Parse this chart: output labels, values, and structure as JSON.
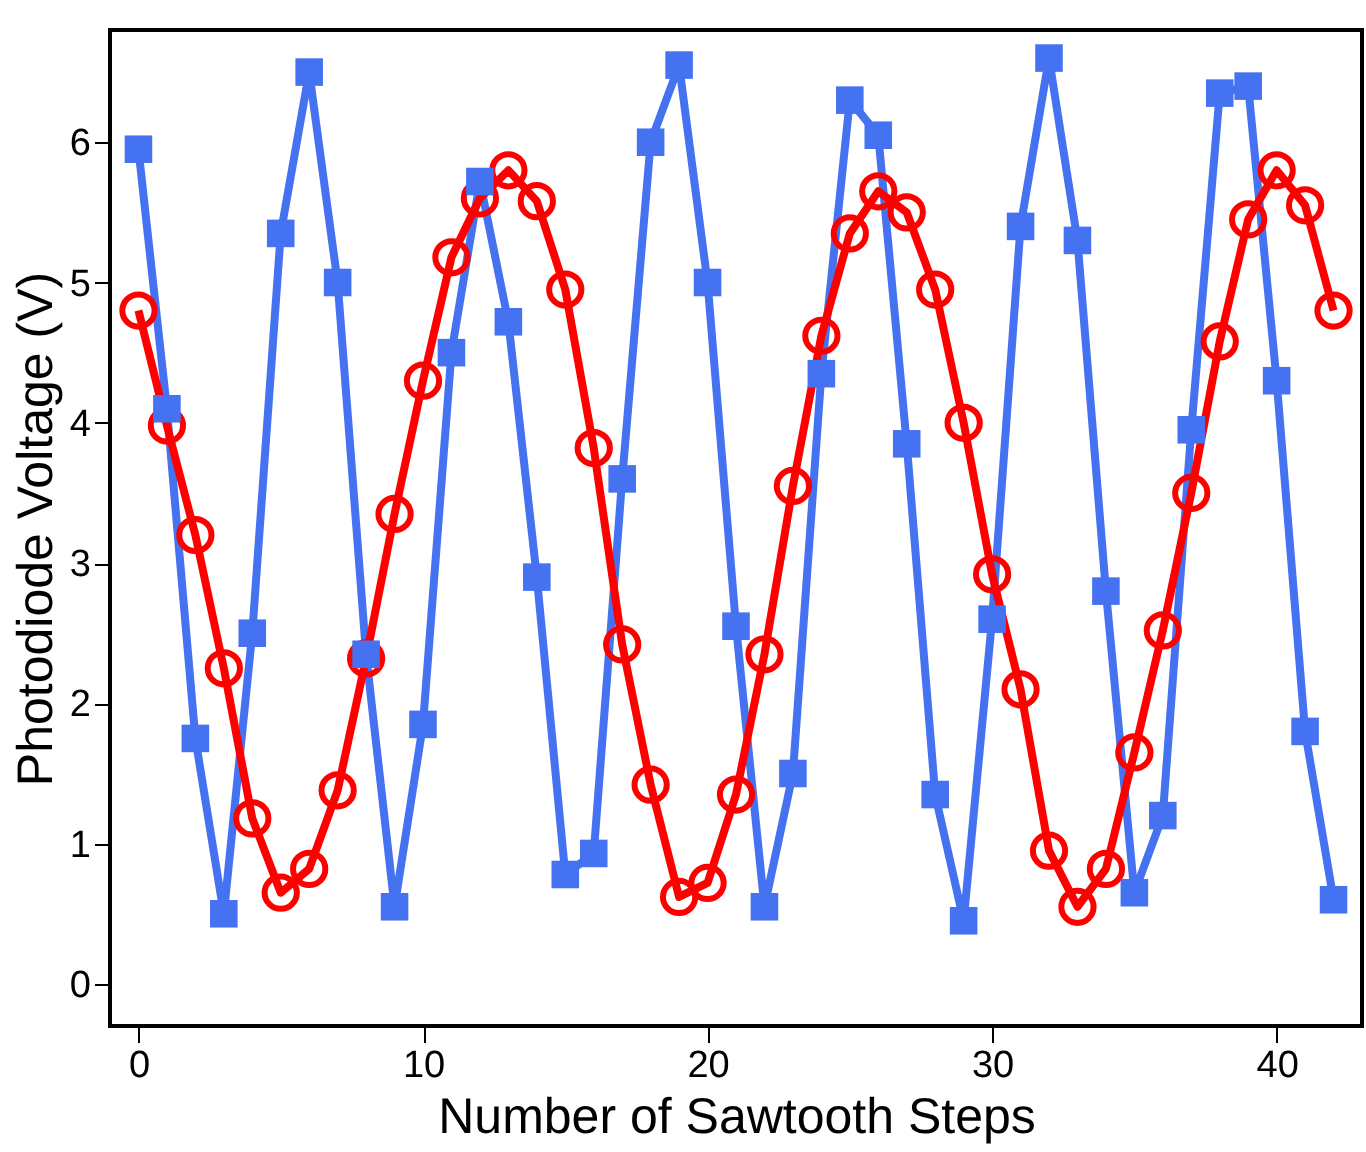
{
  "chart_data": {
    "type": "line",
    "xlabel": "Number of Sawtooth Steps",
    "ylabel": "Photodiode Voltage (V)",
    "x": [
      0,
      1,
      2,
      3,
      4,
      5,
      6,
      7,
      8,
      9,
      10,
      11,
      12,
      13,
      14,
      15,
      16,
      17,
      18,
      19,
      20,
      21,
      22,
      23,
      24,
      25,
      26,
      27,
      28,
      29,
      30,
      31,
      32,
      33,
      34,
      35,
      36,
      37,
      38,
      39,
      40,
      41,
      42
    ],
    "series": [
      {
        "color": "#4472f0",
        "marker": "square",
        "values": [
          5.95,
          4.1,
          1.75,
          0.5,
          2.5,
          5.35,
          6.5,
          5.0,
          2.35,
          0.55,
          1.85,
          4.5,
          5.72,
          4.72,
          2.9,
          0.78,
          0.93,
          3.6,
          6.0,
          6.55,
          5.0,
          2.55,
          0.55,
          1.5,
          4.35,
          6.3,
          6.05,
          3.85,
          1.35,
          0.45,
          2.6,
          5.4,
          6.6,
          5.3,
          2.8,
          0.65,
          1.2,
          3.95,
          6.35,
          6.4,
          4.3,
          1.8,
          0.6
        ]
      },
      {
        "color": "#ff0000",
        "marker": "circle",
        "values": [
          4.8,
          3.98,
          3.2,
          2.25,
          1.18,
          0.65,
          0.82,
          1.38,
          2.32,
          3.35,
          4.3,
          5.18,
          5.6,
          5.8,
          5.58,
          4.95,
          3.82,
          2.42,
          1.42,
          0.62,
          0.72,
          1.35,
          2.35,
          3.55,
          4.62,
          5.35,
          5.65,
          5.5,
          4.95,
          4.0,
          2.92,
          2.1,
          0.95,
          0.55,
          0.82,
          1.65,
          2.52,
          3.5,
          4.58,
          5.45,
          5.8,
          5.55,
          4.8
        ]
      }
    ],
    "xlim": [
      -1,
      43
    ],
    "xticks": [
      0,
      10,
      20,
      30,
      40
    ],
    "ylim": [
      -0.3,
      6.8
    ],
    "yticks": [
      0,
      1,
      2,
      3,
      4,
      5,
      6
    ],
    "grid": false,
    "line_style": "solid"
  }
}
